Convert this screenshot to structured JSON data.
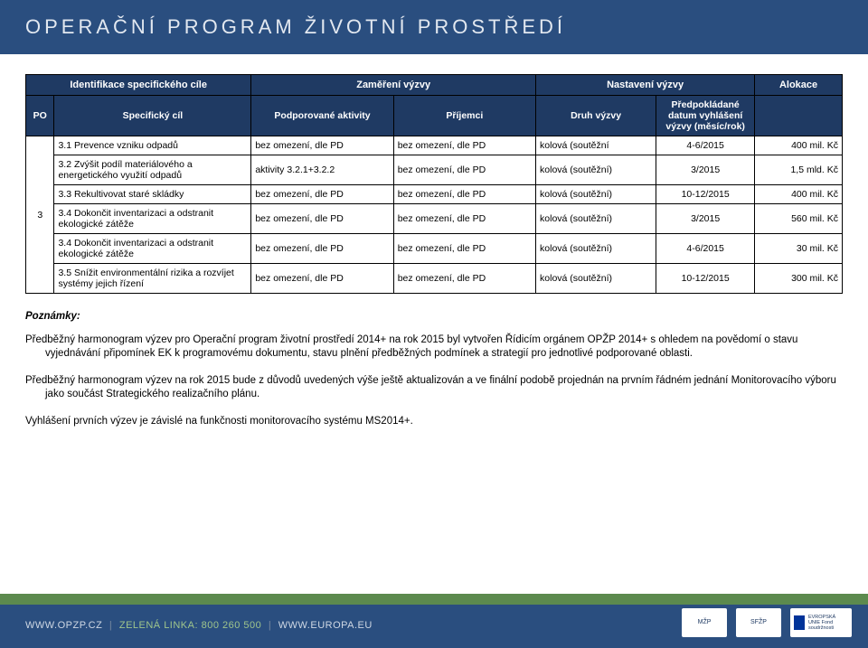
{
  "header": {
    "title": "OPERAČNÍ PROGRAM ŽIVOTNÍ PROSTŘEDÍ"
  },
  "table": {
    "group_headers": {
      "ident": "Identifikace specifického cíle",
      "zamer": "Zaměření výzvy",
      "nast": "Nastavení výzvy",
      "alok": "Alokace"
    },
    "col_headers": {
      "po": "PO",
      "cil": "Specifický cíl",
      "akt": "Podporované aktivity",
      "prij": "Příjemci",
      "druh": "Druh výzvy",
      "datum": "Předpokládané datum vyhlášení výzvy (měsíc/rok)",
      "alok": ""
    },
    "po_value": "3",
    "rows": [
      {
        "cil": "3.1 Prevence vzniku odpadů",
        "akt": "bez omezení, dle PD",
        "prij": "bez omezení, dle PD",
        "druh": "kolová (soutěžní",
        "datum": "4-6/2015",
        "alok": "400 mil. Kč"
      },
      {
        "cil": "3.2 Zvýšit podíl materiálového a energetického využití odpadů",
        "akt": "aktivity 3.2.1+3.2.2",
        "prij": "bez omezení, dle PD",
        "druh": "kolová (soutěžní)",
        "datum": "3/2015",
        "alok": "1,5 mld. Kč"
      },
      {
        "cil": "3.3 Rekultivovat staré skládky",
        "akt": "bez omezení, dle PD",
        "prij": "bez omezení, dle PD",
        "druh": "kolová (soutěžní)",
        "datum": "10-12/2015",
        "alok": "400 mil. Kč"
      },
      {
        "cil": "3.4 Dokončit inventarizaci a odstranit ekologické zátěže",
        "akt": "bez omezení, dle PD",
        "prij": "bez omezení, dle PD",
        "druh": "kolová (soutěžní)",
        "datum": "3/2015",
        "alok": "560 mil. Kč"
      },
      {
        "cil": "3.4 Dokončit inventarizaci a odstranit ekologické zátěže",
        "akt": "bez omezení, dle PD",
        "prij": "bez omezení, dle PD",
        "druh": "kolová (soutěžní)",
        "datum": "4-6/2015",
        "alok": "30 mil. Kč"
      },
      {
        "cil": "3.5 Snížit environmentální rizika a rozvíjet systémy jejich řízení",
        "akt": "bez omezení, dle PD",
        "prij": "bez omezení, dle PD",
        "druh": "kolová (soutěžní)",
        "datum": "10-12/2015",
        "alok": "300 mil. Kč"
      }
    ]
  },
  "notes": {
    "label": "Poznámky:",
    "p1": "Předběžný harmonogram výzev pro  Operační program životní prostředí 2014+ na rok 2015 byl vytvořen Řídicím orgánem OPŽP 2014+ s ohledem na povědomí o stavu vyjednávání připomínek EK k programovému dokumentu, stavu plnění předběžných podmínek a strategií pro jednotlivé podporované oblasti.",
    "p2": "Předběžný harmonogram výzev na rok 2015 bude z důvodů uvedených výše ještě aktualizován a ve finální podobě projednán na prvním řádném jednání Monitorovacího výboru jako součást Strategického realizačního plánu.",
    "p3": "Vyhlášení prvních výzev je závislé na funkčnosti monitorovacího systému MS2014+."
  },
  "footer": {
    "site": "WWW.OPZP.CZ",
    "green_label": "ZELENÁ LINKA:",
    "phone": "800 260 500",
    "eu_site": "WWW.EUROPA.EU",
    "logo1": "MŽP",
    "logo2": "SFŽP",
    "eu_text": "EVROPSKÁ UNIE Fond soudržnosti"
  },
  "colors": {
    "header_bg": "#2a4e7f",
    "th_bg": "#1f3a63",
    "footer_strip": "#5c8a4e"
  }
}
